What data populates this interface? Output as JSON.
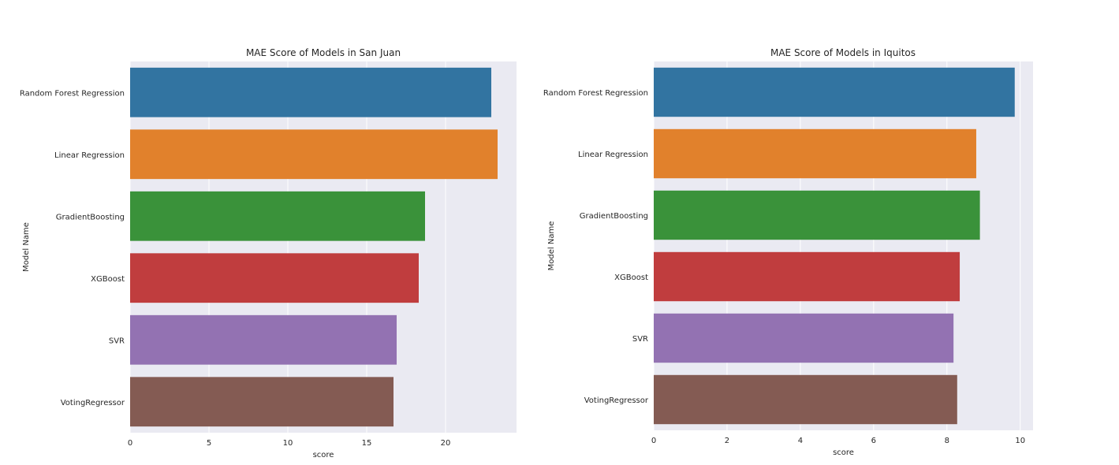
{
  "chart_data": [
    {
      "type": "bar",
      "orientation": "horizontal",
      "title": "MAE Score of Models in San Juan",
      "xlabel": "score",
      "ylabel": "Model Name",
      "categories": [
        "Random Forest Regression",
        "Linear Regression",
        "GradientBoosting",
        "XGBoost",
        "SVR",
        "VotingRegressor"
      ],
      "values": [
        22.9,
        23.3,
        18.7,
        18.3,
        16.9,
        16.7
      ],
      "xlim": [
        0,
        24.5
      ],
      "xticks": [
        0,
        5,
        10,
        15,
        20
      ],
      "grid": true
    },
    {
      "type": "bar",
      "orientation": "horizontal",
      "title": "MAE Score of Models in Iquitos",
      "xlabel": "score",
      "ylabel": "Model Name",
      "categories": [
        "Random Forest Regression",
        "Linear Regression",
        "GradientBoosting",
        "XGBoost",
        "SVR",
        "VotingRegressor"
      ],
      "values": [
        9.85,
        8.8,
        8.9,
        8.35,
        8.18,
        8.28
      ],
      "xlim": [
        0,
        10.35
      ],
      "xticks": [
        0,
        2,
        4,
        6,
        8,
        10
      ],
      "grid": true
    }
  ],
  "colors": {
    "bars": [
      "#3274a1",
      "#e1812c",
      "#3a923a",
      "#c03d3e",
      "#9372b2",
      "#845b53"
    ],
    "plot_background": "#eaeaf2",
    "grid": "#ffffff"
  }
}
